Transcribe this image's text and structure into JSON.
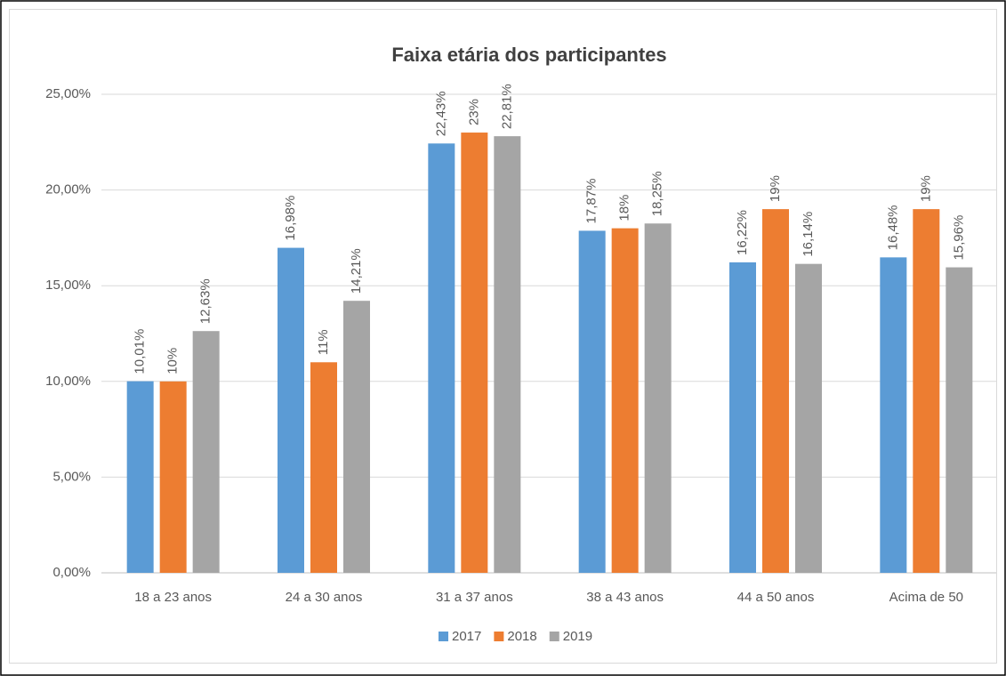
{
  "chart_data": {
    "type": "bar",
    "title": "Faixa etária dos participantes",
    "categories": [
      "18 a 23 anos",
      "24 a 30 anos",
      "31 a 37 anos",
      "38 a 43 anos",
      "44 a 50 anos",
      "Acima de 50"
    ],
    "series": [
      {
        "name": "2017",
        "color": "#5b9bd5",
        "values": [
          10.01,
          16.98,
          22.43,
          17.87,
          16.22,
          16.48
        ],
        "value_labels": [
          "10,01%",
          "16,98%",
          "22,43%",
          "17,87%",
          "16,22%",
          "16,48%"
        ]
      },
      {
        "name": "2018",
        "color": "#ed7d31",
        "values": [
          10,
          11,
          23,
          18,
          19,
          19
        ],
        "value_labels": [
          "10%",
          "11%",
          "23%",
          "18%",
          "19%",
          "19%"
        ]
      },
      {
        "name": "2019",
        "color": "#a5a5a5",
        "values": [
          12.63,
          14.21,
          22.81,
          18.25,
          16.14,
          15.96
        ],
        "value_labels": [
          "12,63%",
          "14,21%",
          "22,81%",
          "18,25%",
          "16,14%",
          "15,96%"
        ]
      }
    ],
    "ylim": [
      0,
      25
    ],
    "yticks": [
      {
        "value": 0,
        "label": "0,00%"
      },
      {
        "value": 5,
        "label": "5,00%"
      },
      {
        "value": 10,
        "label": "10,00%"
      },
      {
        "value": 15,
        "label": "15,00%"
      },
      {
        "value": 20,
        "label": "20,00%"
      },
      {
        "value": 25,
        "label": "25,00%"
      }
    ],
    "grid": true,
    "legend": "bottom"
  }
}
